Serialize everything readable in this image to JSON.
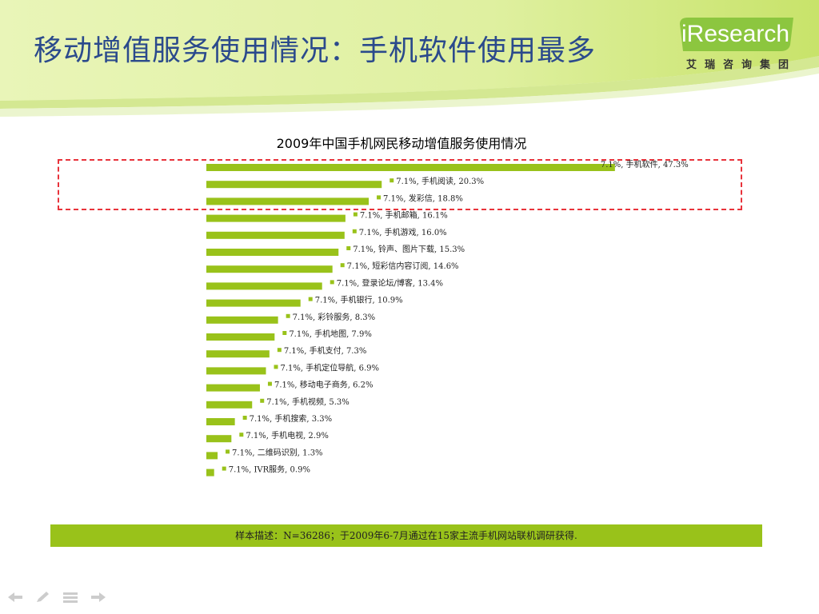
{
  "slide": {
    "title": "移动增值服务使用情况：手机软件使用最多",
    "logo_text": "iResearch",
    "logo_sub": "艾瑞咨询集团",
    "note": "样本描述：N=36286；于2009年6-7月通过在15家主流手机网站联机调研获得."
  },
  "colors": {
    "bar": "#99c21a",
    "title": "#2b4a8c",
    "highlight": "#e8333b",
    "header_green": "#d6ec8f"
  },
  "icons": [
    "back-arrow-icon",
    "pen-icon",
    "menu-icon",
    "forward-arrow-icon"
  ],
  "chart_data": {
    "type": "bar",
    "orientation": "horizontal",
    "title": "2009年中国手机网民移动增值服务使用情况",
    "xlabel": "",
    "ylabel": "",
    "xlim": [
      0,
      50
    ],
    "grid": false,
    "legend": "none",
    "label_prefix": "7.1%",
    "categories": [
      "手机软件",
      "手机阅读",
      "发彩信",
      "手机邮箱",
      "手机游戏",
      "铃声、图片下载",
      "短彩信内容订阅",
      "登录论坛/博客",
      "手机银行",
      "彩铃服务",
      "手机地图",
      "手机支付",
      "手机定位导航",
      "移动电子商务",
      "手机视频",
      "手机搜索",
      "手机电视",
      "二维码识别",
      "IVR服务"
    ],
    "values": [
      47.3,
      20.3,
      18.8,
      16.1,
      16.0,
      15.3,
      14.6,
      13.4,
      10.9,
      8.3,
      7.9,
      7.3,
      6.9,
      6.2,
      5.3,
      3.3,
      2.9,
      1.3,
      0.9
    ],
    "labels": [
      "7.1%, 手机软件, 47.3%",
      "7.1%, 手机阅读, 20.3%",
      "7.1%, 发彩信, 18.8%",
      "7.1%, 手机邮箱, 16.1%",
      "7.1%, 手机游戏, 16.0%",
      "7.1%, 铃声、图片下载, 15.3%",
      "7.1%, 短彩信内容订阅, 14.6%",
      "7.1%, 登录论坛/博客, 13.4%",
      "7.1%, 手机银行, 10.9%",
      "7.1%, 彩铃服务, 8.3%",
      "7.1%, 手机地图, 7.9%",
      "7.1%, 手机支付, 7.3%",
      "7.1%, 手机定位导航, 6.9%",
      "7.1%, 移动电子商务, 6.2%",
      "7.1%, 手机视频, 5.3%",
      "7.1%, 手机搜索, 3.3%",
      "7.1%, 手机电视, 2.9%",
      "7.1%, 二维码识别, 1.3%",
      "7.1%, IVR服务, 0.9%"
    ],
    "highlighted_categories": [
      "手机软件",
      "手机阅读",
      "发彩信"
    ]
  }
}
